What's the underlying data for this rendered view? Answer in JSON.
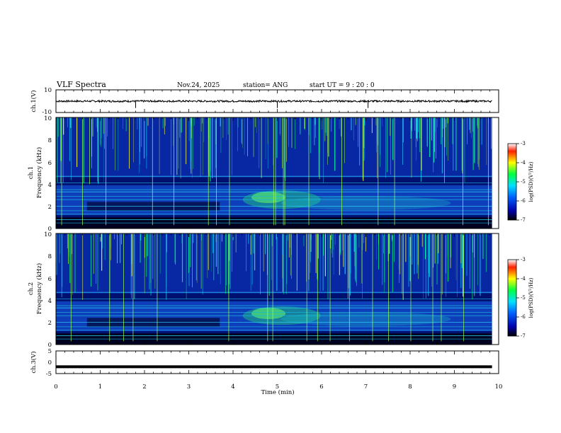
{
  "header": {
    "title": "VLF Spectra",
    "date": "Nov.24, 2025",
    "station": "station= ANG",
    "start": "start  UT =  9 : 20 : 0"
  },
  "chart_data": [
    {
      "type": "line",
      "panel": "ch1_waveform",
      "ylabel": "ch.1(V)",
      "ylim": [
        -10,
        10
      ],
      "yticks": [
        "10",
        "-10"
      ],
      "series": [
        {
          "values": [
            0
          ]
        }
      ]
    },
    {
      "type": "heatmap",
      "panel": "ch1_spectrogram",
      "ylabel_top": "ch.1",
      "ylabel": "Frequency (kHz)",
      "ylim": [
        0,
        10
      ],
      "yticks": [
        "0",
        "2",
        "4",
        "6",
        "8",
        "10"
      ],
      "colorbar": {
        "label": "log(PSD)(V²/Hz)",
        "ticks": [
          "-3",
          "-4",
          "-5",
          "-6",
          "-7"
        ],
        "range": [
          -7,
          -3
        ]
      }
    },
    {
      "type": "heatmap",
      "panel": "ch2_spectrogram",
      "ylabel_top": "ch.2",
      "ylabel": "Frequency (kHz)",
      "ylim": [
        0,
        10
      ],
      "yticks": [
        "0",
        "2",
        "4",
        "6",
        "8",
        "10"
      ],
      "colorbar": {
        "label": "log(PSD)(V²/Hz)",
        "ticks": [
          "-3",
          "-4",
          "-5",
          "-6",
          "-7"
        ],
        "range": [
          -7,
          -3
        ]
      }
    },
    {
      "type": "line",
      "panel": "ch3_waveform",
      "ylabel": "ch.3(V)",
      "ylim": [
        -5,
        5
      ],
      "yticks": [
        "5",
        "0",
        "-5"
      ],
      "series": [
        {
          "values": [
            -2
          ]
        }
      ]
    }
  ],
  "xaxis": {
    "label": "Time (min)",
    "xlim": [
      0,
      10
    ],
    "ticks": [
      "0",
      "1",
      "2",
      "3",
      "4",
      "5",
      "6",
      "7",
      "8",
      "9",
      "10"
    ]
  },
  "colors": {
    "background": "#000033",
    "colormap": [
      "#000066",
      "#0000ff",
      "#00ffff",
      "#00ff00",
      "#ffff00",
      "#ff0000",
      "#ffffff"
    ]
  }
}
